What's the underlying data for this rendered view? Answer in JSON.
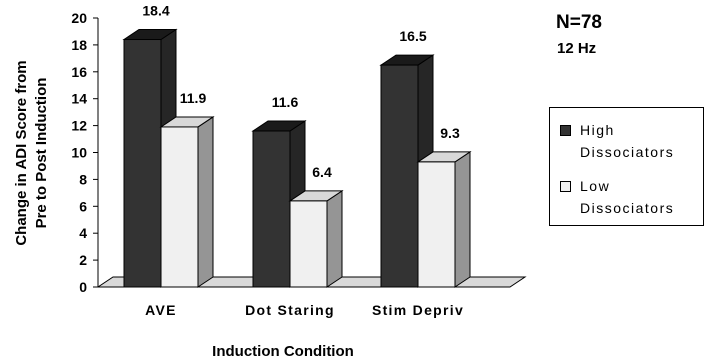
{
  "chart_data": {
    "type": "bar",
    "categories": [
      "AVE",
      "Dot Staring",
      "Stim Depriv"
    ],
    "series": [
      {
        "name": "High Dissociators",
        "values": [
          18.4,
          11.6,
          16.5
        ],
        "color": "#333333"
      },
      {
        "name": "Low Dissociators",
        "values": [
          11.9,
          6.4,
          9.3
        ],
        "color": "#f0f0f0"
      }
    ],
    "data_labels": [
      [
        "18.4",
        "11.6",
        "16.5"
      ],
      [
        "11.9",
        "6.4",
        "9.3"
      ]
    ],
    "title": "",
    "xlabel": "Induction Condition",
    "ylabel": "Change in ADI Score from Pre to Post Induction",
    "ylabel_lines": [
      "Change in ADI Score from",
      "Pre to Post Induction"
    ],
    "ylim": [
      0,
      20
    ],
    "yticks": [
      0,
      2,
      4,
      6,
      8,
      10,
      12,
      14,
      16,
      18,
      20
    ],
    "grid": false,
    "legend_position": "right",
    "three_d": true
  },
  "annotations": {
    "n": "N=78",
    "frequency": "12 Hz"
  },
  "legend": {
    "high": {
      "line1": "High",
      "line2": "Dissociators"
    },
    "low": {
      "line1": "Low",
      "line2": "Dissociators"
    }
  }
}
